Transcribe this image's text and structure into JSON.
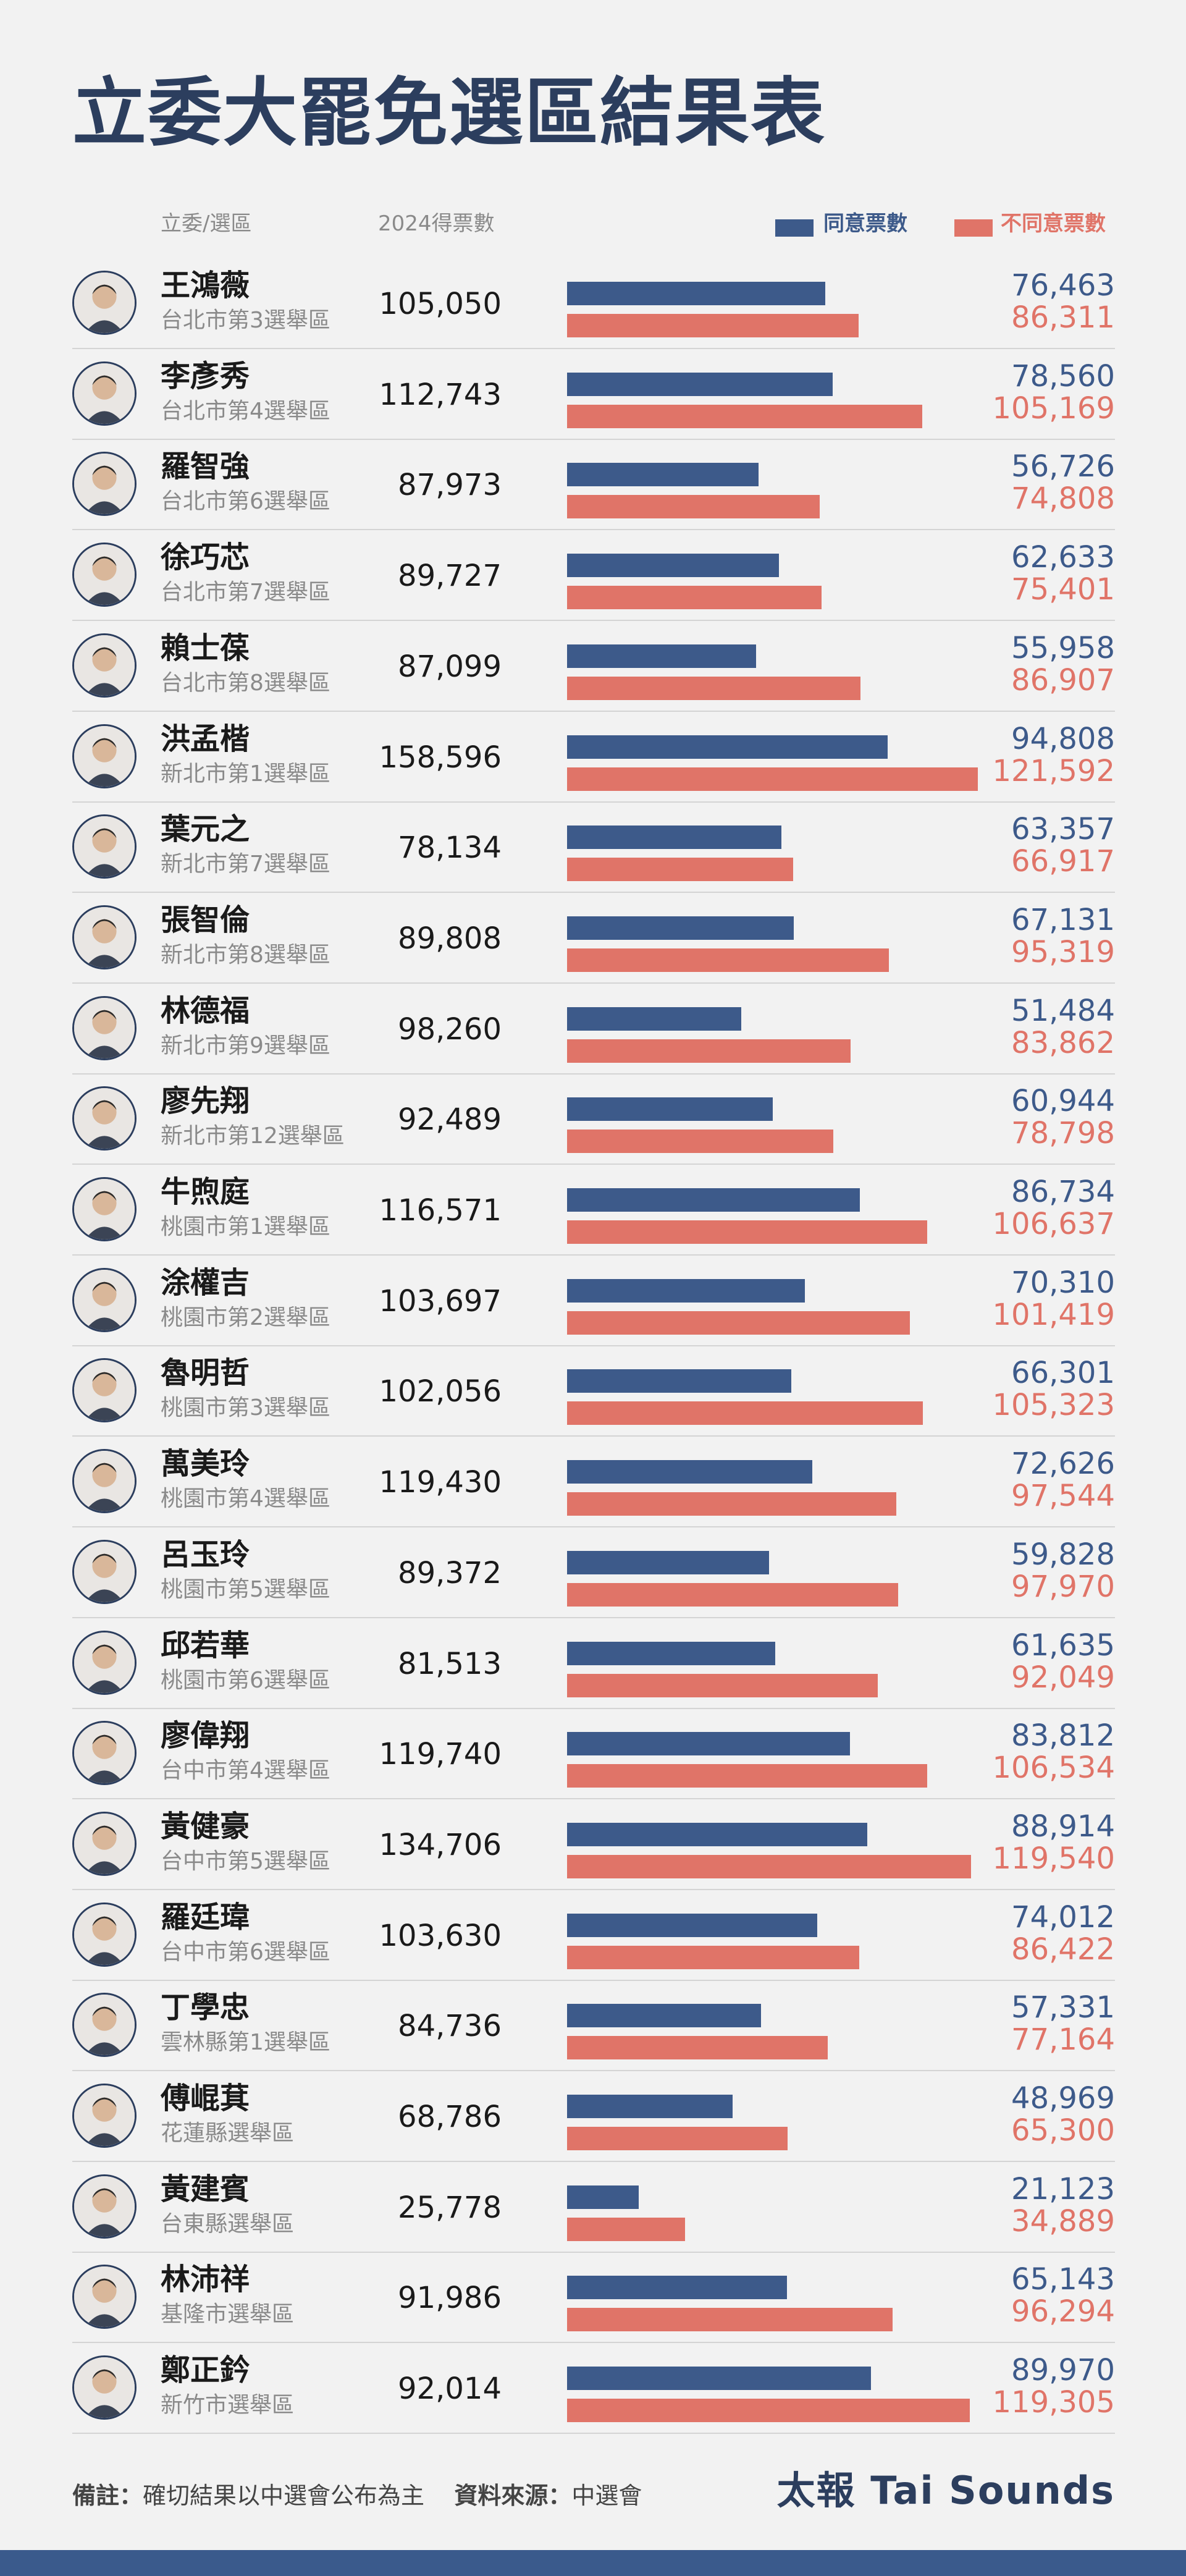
{
  "title": "立委大罷免選區結果表",
  "header": {
    "col_name": "立委/選區",
    "col_votes2024": "2024得票數",
    "legend_agree": "同意票數",
    "legend_disagree": "不同意票數"
  },
  "colors": {
    "agree": "#3d5a8a",
    "disagree": "#e07468",
    "title": "#2c3e5e",
    "band": "#3a5a8c"
  },
  "chart_data": {
    "type": "bar",
    "orientation": "horizontal",
    "series": [
      {
        "name": "同意票數",
        "values": [
          76463,
          78560,
          56726,
          62633,
          55958,
          94808,
          63357,
          67131,
          51484,
          60944,
          86734,
          70310,
          66301,
          72626,
          59828,
          61635,
          83812,
          88914,
          74012,
          57331,
          48969,
          21123,
          65143,
          89970
        ]
      },
      {
        "name": "不同意票數",
        "values": [
          86311,
          105169,
          74808,
          75401,
          86907,
          121592,
          66917,
          95319,
          83862,
          78798,
          106637,
          101419,
          105323,
          97544,
          97970,
          92049,
          106534,
          119540,
          86422,
          77164,
          65300,
          34889,
          96294,
          119305
        ]
      }
    ],
    "xlim": [
      0,
      121592
    ]
  },
  "rows": [
    {
      "name": "王鴻薇",
      "district": "台北市第3選舉區",
      "votes2024": "105,050",
      "agree": 76463,
      "agree_label": "76,463",
      "disagree": 86311,
      "disagree_label": "86,311",
      "icon": "portrait-icon"
    },
    {
      "name": "李彥秀",
      "district": "台北市第4選舉區",
      "votes2024": "112,743",
      "agree": 78560,
      "agree_label": "78,560",
      "disagree": 105169,
      "disagree_label": "105,169",
      "icon": "portrait-icon"
    },
    {
      "name": "羅智強",
      "district": "台北市第6選舉區",
      "votes2024": "87,973",
      "agree": 56726,
      "agree_label": "56,726",
      "disagree": 74808,
      "disagree_label": "74,808",
      "icon": "portrait-icon"
    },
    {
      "name": "徐巧芯",
      "district": "台北市第7選舉區",
      "votes2024": "89,727",
      "agree": 62633,
      "agree_label": "62,633",
      "disagree": 75401,
      "disagree_label": "75,401",
      "icon": "portrait-icon"
    },
    {
      "name": "賴士葆",
      "district": "台北市第8選舉區",
      "votes2024": "87,099",
      "agree": 55958,
      "agree_label": "55,958",
      "disagree": 86907,
      "disagree_label": "86,907",
      "icon": "portrait-icon"
    },
    {
      "name": "洪孟楷",
      "district": "新北市第1選舉區",
      "votes2024": "158,596",
      "agree": 94808,
      "agree_label": "94,808",
      "disagree": 121592,
      "disagree_label": "121,592",
      "icon": "portrait-icon"
    },
    {
      "name": "葉元之",
      "district": "新北市第7選舉區",
      "votes2024": "78,134",
      "agree": 63357,
      "agree_label": "63,357",
      "disagree": 66917,
      "disagree_label": "66,917",
      "icon": "portrait-icon"
    },
    {
      "name": "張智倫",
      "district": "新北市第8選舉區",
      "votes2024": "89,808",
      "agree": 67131,
      "agree_label": "67,131",
      "disagree": 95319,
      "disagree_label": "95,319",
      "icon": "portrait-icon"
    },
    {
      "name": "林德福",
      "district": "新北市第9選舉區",
      "votes2024": "98,260",
      "agree": 51484,
      "agree_label": "51,484",
      "disagree": 83862,
      "disagree_label": "83,862",
      "icon": "portrait-icon"
    },
    {
      "name": "廖先翔",
      "district": "新北市第12選舉區",
      "votes2024": "92,489",
      "agree": 60944,
      "agree_label": "60,944",
      "disagree": 78798,
      "disagree_label": "78,798",
      "icon": "portrait-icon"
    },
    {
      "name": "牛煦庭",
      "district": "桃園市第1選舉區",
      "votes2024": "116,571",
      "agree": 86734,
      "agree_label": "86,734",
      "disagree": 106637,
      "disagree_label": "106,637",
      "icon": "portrait-icon"
    },
    {
      "name": "涂權吉",
      "district": "桃園市第2選舉區",
      "votes2024": "103,697",
      "agree": 70310,
      "agree_label": "70,310",
      "disagree": 101419,
      "disagree_label": "101,419",
      "icon": "portrait-icon"
    },
    {
      "name": "魯明哲",
      "district": "桃園市第3選舉區",
      "votes2024": "102,056",
      "agree": 66301,
      "agree_label": "66,301",
      "disagree": 105323,
      "disagree_label": "105,323",
      "icon": "portrait-icon"
    },
    {
      "name": "萬美玲",
      "district": "桃園市第4選舉區",
      "votes2024": "119,430",
      "agree": 72626,
      "agree_label": "72,626",
      "disagree": 97544,
      "disagree_label": "97,544",
      "icon": "portrait-icon"
    },
    {
      "name": "呂玉玲",
      "district": "桃園市第5選舉區",
      "votes2024": "89,372",
      "agree": 59828,
      "agree_label": "59,828",
      "disagree": 97970,
      "disagree_label": "97,970",
      "icon": "portrait-icon"
    },
    {
      "name": "邱若華",
      "district": "桃園市第6選舉區",
      "votes2024": "81,513",
      "agree": 61635,
      "agree_label": "61,635",
      "disagree": 92049,
      "disagree_label": "92,049",
      "icon": "portrait-icon"
    },
    {
      "name": "廖偉翔",
      "district": "台中市第4選舉區",
      "votes2024": "119,740",
      "agree": 83812,
      "agree_label": "83,812",
      "disagree": 106534,
      "disagree_label": "106,534",
      "icon": "portrait-icon"
    },
    {
      "name": "黃健豪",
      "district": "台中市第5選舉區",
      "votes2024": "134,706",
      "agree": 88914,
      "agree_label": "88,914",
      "disagree": 119540,
      "disagree_label": "119,540",
      "icon": "portrait-icon"
    },
    {
      "name": "羅廷瑋",
      "district": "台中市第6選舉區",
      "votes2024": "103,630",
      "agree": 74012,
      "agree_label": "74,012",
      "disagree": 86422,
      "disagree_label": "86,422",
      "icon": "portrait-icon"
    },
    {
      "name": "丁學忠",
      "district": "雲林縣第1選舉區",
      "votes2024": "84,736",
      "agree": 57331,
      "agree_label": "57,331",
      "disagree": 77164,
      "disagree_label": "77,164",
      "icon": "portrait-icon"
    },
    {
      "name": "傅崐萁",
      "district": "花蓮縣選舉區",
      "votes2024": "68,786",
      "agree": 48969,
      "agree_label": "48,969",
      "disagree": 65300,
      "disagree_label": "65,300",
      "icon": "portrait-icon"
    },
    {
      "name": "黃建賓",
      "district": "台東縣選舉區",
      "votes2024": "25,778",
      "agree": 21123,
      "agree_label": "21,123",
      "disagree": 34889,
      "disagree_label": "34,889",
      "icon": "portrait-icon"
    },
    {
      "name": "林沛祥",
      "district": "基隆市選舉區",
      "votes2024": "91,986",
      "agree": 65143,
      "agree_label": "65,143",
      "disagree": 96294,
      "disagree_label": "96,294",
      "icon": "portrait-icon"
    },
    {
      "name": "鄭正鈐",
      "district": "新竹市選舉區",
      "votes2024": "92,014",
      "agree": 89970,
      "agree_label": "89,970",
      "disagree": 119305,
      "disagree_label": "119,305",
      "icon": "portrait-icon"
    }
  ],
  "footer": {
    "note_label": "備註：",
    "note_text": "確切結果以中選會公布為主",
    "source_label": "資料來源：",
    "source_text": "中選會",
    "brand": "太報 Tai Sounds"
  }
}
